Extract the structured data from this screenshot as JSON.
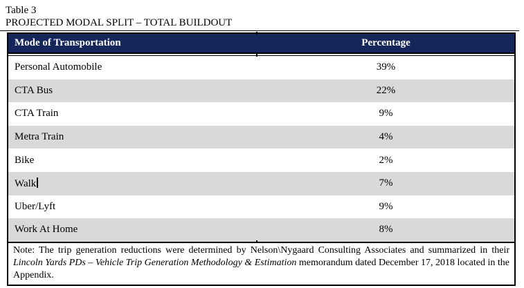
{
  "doc": {
    "caption_line1": "Table 3",
    "caption_line2": "PROJECTED MODAL SPLIT – TOTAL BUILDOUT"
  },
  "table": {
    "header": {
      "mode_label": "Mode of Transportation",
      "percentage_label": "Percentage",
      "bg_color": "#15265b",
      "text_color": "#ffffff"
    },
    "stripe_color": "#d9d9d9",
    "rows": [
      {
        "mode": "Personal Automobile",
        "percentage": "39%"
      },
      {
        "mode": "CTA Bus",
        "percentage": "22%"
      },
      {
        "mode": "CTA Train",
        "percentage": "9%"
      },
      {
        "mode": "Metra Train",
        "percentage": "4%"
      },
      {
        "mode": "Bike",
        "percentage": "2%"
      },
      {
        "mode": "Walk",
        "percentage": "7%"
      },
      {
        "mode": "Uber/Lyft",
        "percentage": "9%"
      },
      {
        "mode": "Work At Home",
        "percentage": "8%"
      }
    ],
    "note": {
      "prefix": "Note: The trip generation reductions were determined by Nelson\\Nygaard Consulting Associates and summarized in their ",
      "italic": "Lincoln Yards PDs – Vehicle Trip Generation Methodology & Estimation",
      "suffix": " memorandum dated December 17, 2018 located in the Appendix."
    }
  },
  "chart_data": {
    "type": "table",
    "title": "PROJECTED MODAL SPLIT – TOTAL BUILDOUT",
    "categories": [
      "Personal Automobile",
      "CTA Bus",
      "CTA Train",
      "Metra Train",
      "Bike",
      "Walk",
      "Uber/Lyft",
      "Work At Home"
    ],
    "values": [
      39,
      22,
      9,
      4,
      2,
      7,
      9,
      8
    ],
    "xlabel": "Mode of Transportation",
    "ylabel": "Percentage"
  }
}
